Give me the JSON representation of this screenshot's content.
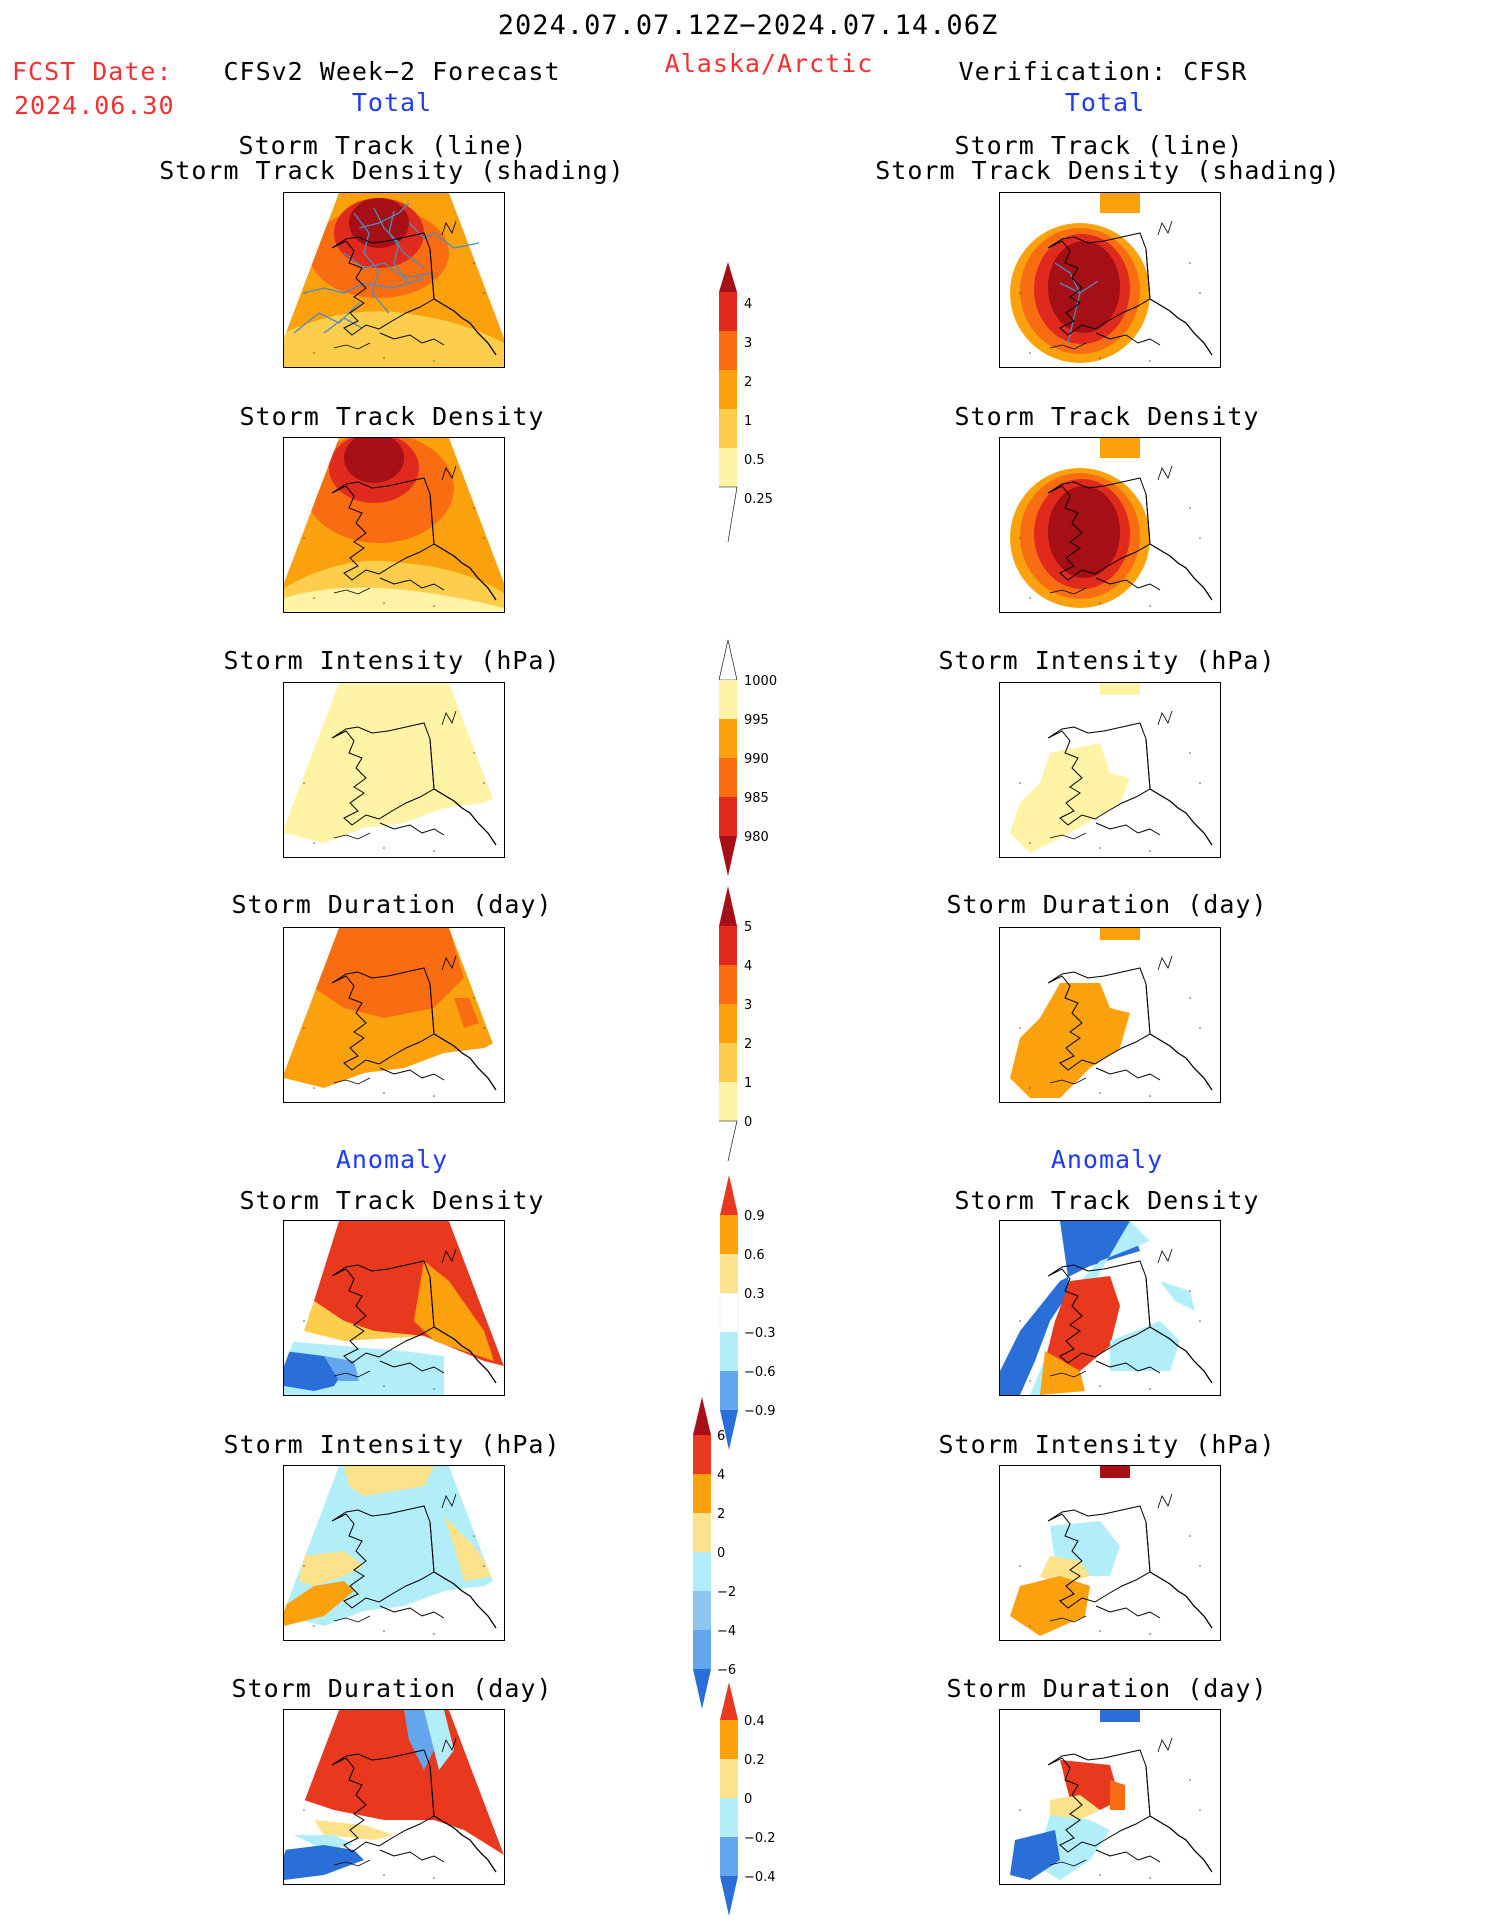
{
  "header": {
    "period": "2024.07.07.12Z−2024.07.14.06Z",
    "fcst_label": "FCST Date:",
    "fcst_date": "2024.06.30",
    "forecast_title": "CFSv2 Week−2 Forecast",
    "region": "Alaska/Arctic",
    "verification_title": "Verification: CFSR",
    "forecast_section": "Total",
    "verification_section": "Total"
  },
  "anomaly_labels": {
    "left": "Anomaly",
    "right": "Anomaly"
  },
  "panel_titles": {
    "track_line": "Storm Track (line)",
    "track_shading": "Storm Track Density (shading)",
    "track_density": "Storm Track Density",
    "intensity": "Storm Intensity (hPa)",
    "duration": "Storm Duration (day)"
  },
  "colorbars": {
    "track_density": {
      "ticks": [
        "4",
        "3",
        "2",
        "1",
        "0.5",
        "0.25"
      ],
      "colors": [
        "#a50f15",
        "#e02a1d",
        "#f86d12",
        "#fba10e",
        "#fdcd4c",
        "#fff3a6"
      ]
    },
    "intensity": {
      "ticks": [
        "1000",
        "995",
        "990",
        "985",
        "980"
      ],
      "colors": [
        "#fff3a6",
        "#fba10e",
        "#f86d12",
        "#e02a1d",
        "#a50f15"
      ]
    },
    "duration": {
      "ticks": [
        "5",
        "4",
        "3",
        "2",
        "1",
        "0"
      ],
      "colors": [
        "#a50f15",
        "#e02a1d",
        "#f86d12",
        "#fba10e",
        "#fdcd4c",
        "#fff3a6"
      ]
    },
    "anom_density": {
      "ticks": [
        "0.9",
        "0.6",
        "0.3",
        "−0.3",
        "−0.6",
        "−0.9"
      ]
    },
    "anom_intensity": {
      "ticks": [
        "6",
        "4",
        "2",
        "0",
        "−2",
        "−4",
        "−6"
      ]
    },
    "anom_duration": {
      "ticks": [
        "0.4",
        "0.2",
        "0",
        "−0.2",
        "−0.4"
      ]
    }
  },
  "colors": {
    "title_red": "#f03232",
    "section_blue": "#1f3cf0",
    "track_line": "#4f8bbf"
  }
}
